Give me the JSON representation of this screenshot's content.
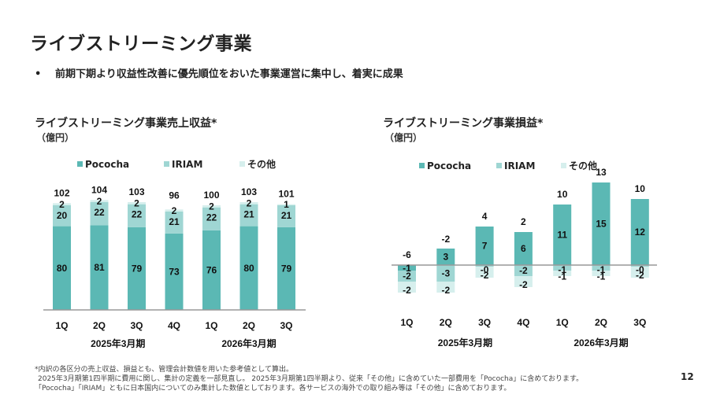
{
  "page": {
    "title": "ライブストリーミング事業",
    "bullet": "前期下期より収益性改善に優先順位をおいた事業運営に集中し、着実に成果",
    "bullet_marker": "•",
    "page_number": "12",
    "footnotes": [
      "*内訳の各区分の売上収益、損益とも、管理会計数値を用いた参考値として算出。",
      "2025年3月期第1四半期に費用に関し、集計の定義を一部見直し。 2025年3月期第1四半期より、従来「その他」に含めていた一部費用を「Pococha」に含めております。",
      "「Pococha」「IRIAM」ともに日本国内についてのみ集計した数値としております。各サービスの海外での取り組み等は「その他」に含めております。"
    ]
  },
  "colors": {
    "pococha": "#5bb8b4",
    "iriam": "#9fd6d3",
    "other": "#d6efed",
    "axis": "#999999"
  },
  "chart_data": [
    {
      "type": "bar",
      "stacked": true,
      "title": "ライブストリーミング事業売上収益*",
      "unit": "（億円）",
      "legend": [
        "Pococha",
        "IRIAM",
        "その他"
      ],
      "legend_position": "top",
      "categories": [
        "1Q",
        "2Q",
        "3Q",
        "4Q",
        "1Q",
        "2Q",
        "3Q"
      ],
      "groups": [
        {
          "label": "2025年3月期",
          "span": [
            0,
            3
          ]
        },
        {
          "label": "2026年3月期",
          "span": [
            4,
            6
          ]
        }
      ],
      "series": [
        {
          "name": "Pococha",
          "values": [
            80,
            81,
            79,
            73,
            76,
            80,
            79
          ]
        },
        {
          "name": "IRIAM",
          "values": [
            20,
            22,
            22,
            21,
            22,
            21,
            21
          ]
        },
        {
          "name": "その他",
          "values": [
            2,
            2,
            2,
            2,
            2,
            2,
            1
          ]
        }
      ],
      "totals": [
        102,
        104,
        103,
        96,
        100,
        103,
        101
      ],
      "ylim": [
        0,
        110
      ],
      "grid": false
    },
    {
      "type": "bar",
      "stacked": true,
      "title": "ライブストリーミング事業損益*",
      "unit": "（億円）",
      "legend": [
        "Pococha",
        "IRIAM",
        "その他"
      ],
      "legend_position": "top",
      "categories": [
        "1Q",
        "2Q",
        "3Q",
        "4Q",
        "1Q",
        "2Q",
        "3Q"
      ],
      "groups": [
        {
          "label": "2025年3月期",
          "span": [
            0,
            3
          ]
        },
        {
          "label": "2026年3月期",
          "span": [
            4,
            6
          ]
        }
      ],
      "series": [
        {
          "name": "Pococha",
          "values": [
            -1,
            3,
            7,
            6,
            11,
            15,
            12
          ],
          "labels": [
            "-1",
            "3",
            "7",
            "6",
            "11",
            "15",
            "12"
          ]
        },
        {
          "name": "IRIAM",
          "values": [
            -2,
            -3,
            -0.3,
            -2,
            -1,
            -1,
            -0.3
          ],
          "labels": [
            "-2",
            "-3",
            "-0",
            "-2",
            "-1",
            "-1",
            "-0"
          ]
        },
        {
          "name": "その他",
          "values": [
            -2,
            -2,
            -2,
            -2,
            -1,
            -1,
            -2
          ],
          "labels": [
            "-2",
            "-2",
            "-2",
            "-2",
            "-1",
            "-1",
            "-2"
          ]
        }
      ],
      "totals": [
        -6,
        -2,
        4,
        2,
        10,
        13,
        10
      ],
      "ylim": [
        -7,
        16
      ],
      "grid": false
    }
  ]
}
